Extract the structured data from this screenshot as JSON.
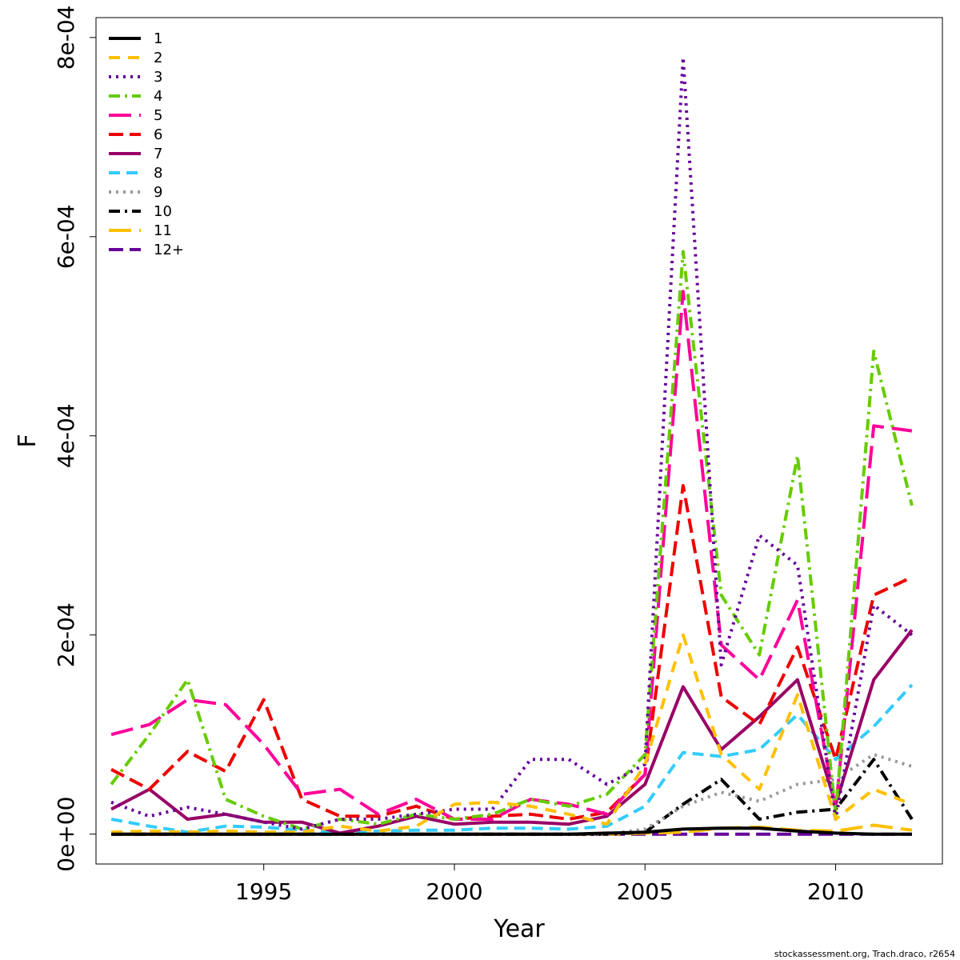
{
  "chart_data": {
    "type": "line",
    "title": "",
    "xlabel": "Year",
    "ylabel": "F",
    "xlim": [
      1990.6,
      2012.8
    ],
    "ylim": [
      -3e-05,
      0.00082
    ],
    "x_ticks": [
      1995,
      2000,
      2005,
      2010
    ],
    "x_tick_labels": [
      "1995",
      "2000",
      "2005",
      "2010"
    ],
    "y_ticks": [
      0,
      0.0002,
      0.0004,
      0.0006,
      0.0008
    ],
    "y_tick_labels": [
      "0e+00",
      "2e-04",
      "4e-04",
      "6e-04",
      "8e-04"
    ],
    "legend_position": "top-left",
    "credit": "stockassessment.org, Trach.draco, r2654",
    "x": [
      1991,
      1992,
      1993,
      1994,
      1995,
      1996,
      1997,
      1998,
      1999,
      2000,
      2001,
      2002,
      2003,
      2004,
      2005,
      2006,
      2007,
      2008,
      2009,
      2010,
      2011,
      2012
    ],
    "series": [
      {
        "name": "1",
        "color": "#000000",
        "dash": "",
        "values": [
          0,
          0,
          0,
          0,
          0,
          0,
          0,
          0,
          0,
          0,
          0,
          0,
          0,
          1e-06,
          2e-06,
          5e-06,
          6e-06,
          6e-06,
          3e-06,
          1e-06,
          0,
          0
        ]
      },
      {
        "name": "2",
        "color": "#FFC000",
        "dash": "14 10",
        "values": [
          2e-06,
          3e-06,
          2e-06,
          3e-06,
          2e-06,
          2e-06,
          8e-06,
          3e-06,
          8e-06,
          3e-05,
          3.2e-05,
          2.8e-05,
          2e-05,
          1e-05,
          7e-05,
          0.0002,
          8e-05,
          4.5e-05,
          0.00014,
          1.5e-05,
          4.5e-05,
          3e-05
        ]
      },
      {
        "name": "3",
        "color": "#660099",
        "dash": "3 6",
        "values": [
          3.2e-05,
          1.8e-05,
          2.7e-05,
          2e-05,
          1.2e-05,
          5e-06,
          1.5e-05,
          1.5e-05,
          2e-05,
          2.5e-05,
          2.5e-05,
          7.5e-05,
          7.5e-05,
          5e-05,
          7e-05,
          0.00078,
          0.00017,
          0.0003,
          0.00027,
          1.5e-05,
          0.00023,
          0.0002
        ]
      },
      {
        "name": "4",
        "color": "#66CC00",
        "dash": "14 6 3 6",
        "values": [
          5e-05,
          0.0001,
          0.000155,
          3.5e-05,
          1.8e-05,
          5e-06,
          1.5e-05,
          1e-05,
          2e-05,
          1.5e-05,
          2e-05,
          3.5e-05,
          2.8e-05,
          4e-05,
          8e-05,
          0.000585,
          0.00024,
          0.00018,
          0.00038,
          2e-05,
          0.000485,
          0.00033
        ]
      },
      {
        "name": "5",
        "color": "#FF0099",
        "dash": "28 10",
        "values": [
          0.0001,
          0.00011,
          0.000135,
          0.00013,
          9e-05,
          4e-05,
          4.5e-05,
          2e-05,
          3.5e-05,
          1.5e-05,
          1.5e-05,
          3.5e-05,
          3e-05,
          2e-05,
          6e-05,
          0.000545,
          0.00019,
          0.000155,
          0.000235,
          2.5e-05,
          0.00041,
          0.000405
        ]
      },
      {
        "name": "6",
        "color": "#EE0000",
        "dash": "18 8",
        "values": [
          6.5e-05,
          4.5e-05,
          8.3e-05,
          6.3e-05,
          0.000135,
          3.5e-05,
          1.8e-05,
          1.8e-05,
          2.8e-05,
          1.5e-05,
          1.8e-05,
          2e-05,
          1.5e-05,
          2.2e-05,
          6e-05,
          0.00035,
          0.000138,
          0.00011,
          0.000188,
          7.5e-05,
          0.00024,
          0.000258
        ]
      },
      {
        "name": "7",
        "color": "#990066",
        "dash": "",
        "values": [
          2.5e-05,
          4.5e-05,
          1.5e-05,
          2e-05,
          1.2e-05,
          1.2e-05,
          1e-06,
          8e-06,
          1.8e-05,
          1e-05,
          1.2e-05,
          1.2e-05,
          1e-05,
          1.8e-05,
          5e-05,
          0.000148,
          8.5e-05,
          0.000118,
          0.000155,
          3e-05,
          0.000155,
          0.000205
        ]
      },
      {
        "name": "8",
        "color": "#33CCFF",
        "dash": "14 8",
        "values": [
          1.5e-05,
          8e-06,
          2e-06,
          8e-06,
          7e-06,
          4e-06,
          1e-06,
          3e-06,
          4e-06,
          4e-06,
          6e-06,
          6e-06,
          5e-06,
          8e-06,
          2.8e-05,
          8.2e-05,
          7.8e-05,
          8.5e-05,
          0.00012,
          7.5e-05,
          0.000108,
          0.00015
        ]
      },
      {
        "name": "9",
        "color": "#999999",
        "dash": "3 6",
        "values": [
          0,
          0,
          0,
          0,
          0,
          0,
          0,
          0,
          0,
          0,
          0,
          0,
          0,
          0,
          5e-06,
          2.8e-05,
          4.2e-05,
          3.3e-05,
          5e-05,
          5.5e-05,
          8e-05,
          6.8e-05
        ]
      },
      {
        "name": "10",
        "color": "#000000",
        "dash": "14 6 3 6",
        "values": [
          0,
          0,
          0,
          0,
          0,
          0,
          0,
          0,
          0,
          0,
          0,
          0,
          0,
          0,
          2e-06,
          3e-05,
          5.5e-05,
          1.5e-05,
          2.2e-05,
          2.5e-05,
          7.5e-05,
          1.5e-05
        ]
      },
      {
        "name": "11",
        "color": "#FFC000",
        "dash": "28 10",
        "values": [
          0,
          0,
          0,
          0,
          0,
          0,
          0,
          0,
          0,
          0,
          0,
          0,
          0,
          0,
          1e-06,
          2e-06,
          6e-06,
          7e-06,
          4e-06,
          3e-06,
          9e-06,
          4e-06
        ]
      },
      {
        "name": "12+",
        "color": "#660099",
        "dash": "18 8",
        "values": [
          0,
          0,
          0,
          0,
          0,
          0,
          0,
          0,
          0,
          0,
          0,
          0,
          0,
          0,
          0,
          0,
          0,
          0,
          0,
          0,
          0,
          0
        ]
      }
    ]
  }
}
